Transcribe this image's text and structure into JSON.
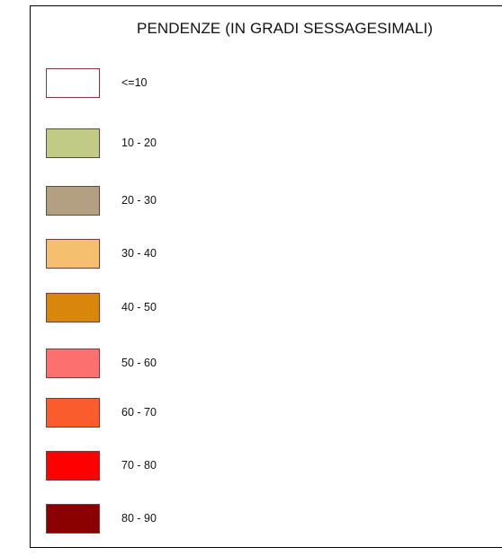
{
  "legend": {
    "title": "PENDENZE (IN GRADI SESSAGESIMALI)",
    "items": [
      {
        "label": "<=10",
        "color": "#ffffff"
      },
      {
        "label": "10 - 20",
        "color": "#c2cb85"
      },
      {
        "label": "20 - 30",
        "color": "#b39f82"
      },
      {
        "label": "30 - 40",
        "color": "#f4c06f"
      },
      {
        "label": "40 - 50",
        "color": "#d8870c"
      },
      {
        "label": "50 - 60",
        "color": "#fd7070"
      },
      {
        "label": "60 - 70",
        "color": "#fb5c2e"
      },
      {
        "label": "70 - 80",
        "color": "#fe0000"
      },
      {
        "label": "80 - 90",
        "color": "#8b0000"
      }
    ]
  }
}
